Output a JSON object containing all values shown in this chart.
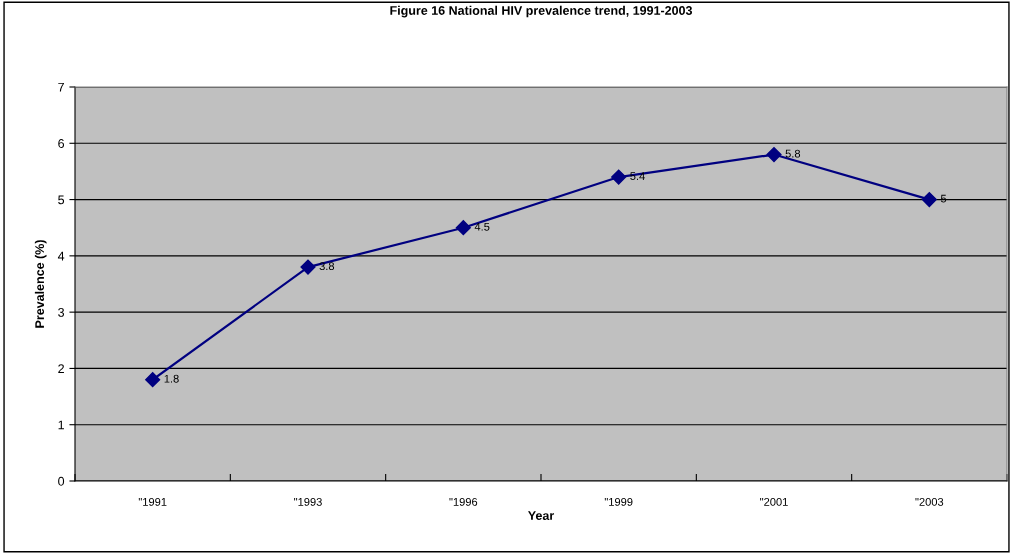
{
  "chart_data": {
    "type": "line",
    "title": "Figure 16 National HIV prevalence trend, 1991-2003",
    "xlabel": "Year",
    "ylabel": "Prevalence (%)",
    "categories": [
      "\"1991",
      "\"1993",
      "\"1996",
      "\"1999",
      "\"2001",
      "\"2003"
    ],
    "series": [
      {
        "color": "#000080",
        "values": [
          1.8,
          3.8,
          4.5,
          5.4,
          5.8,
          5
        ]
      }
    ],
    "ylim": [
      0,
      7
    ],
    "yticks": [
      0,
      1,
      2,
      3,
      4,
      5,
      6,
      7
    ],
    "grid": "y",
    "marker": "diamond",
    "line_style": "solid",
    "data_labels": true,
    "legend": false
  }
}
